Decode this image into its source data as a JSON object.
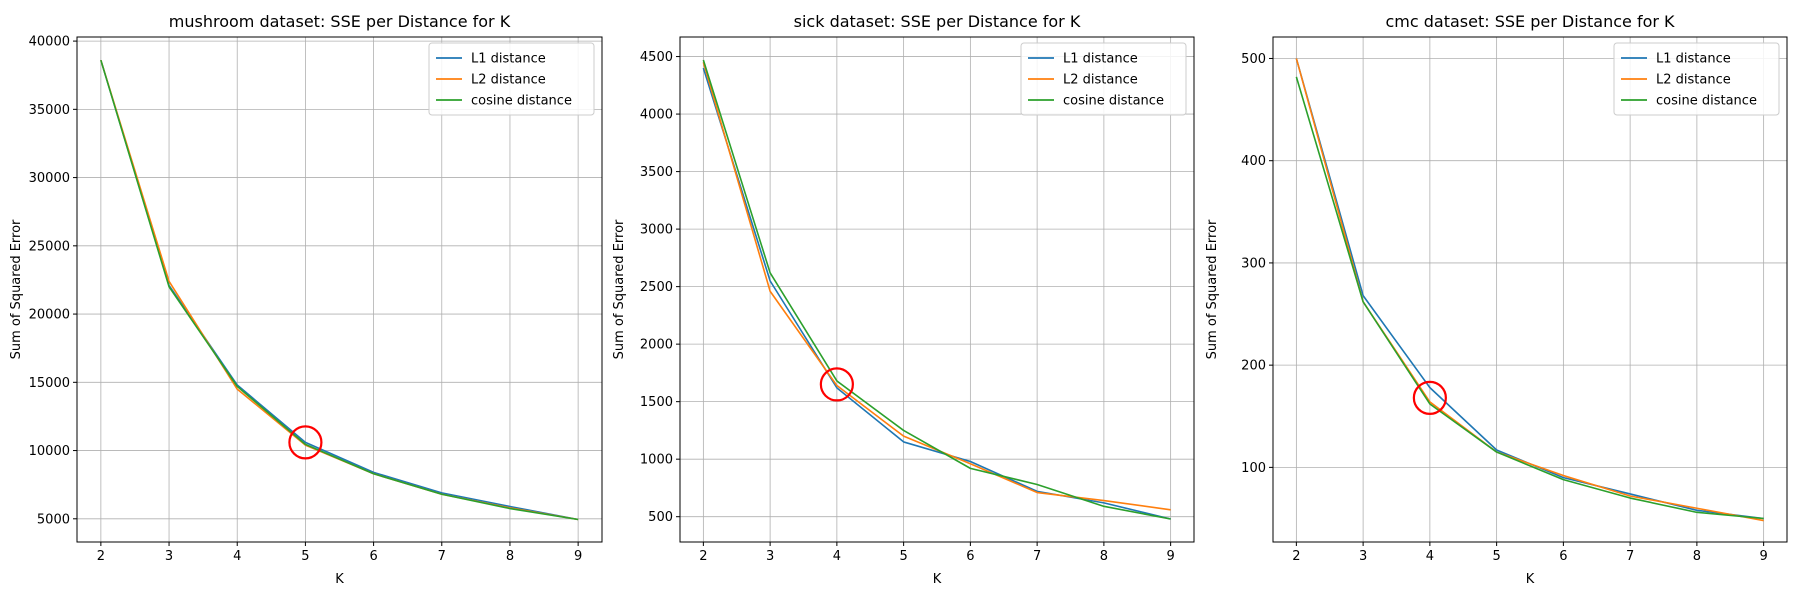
{
  "chart_data": [
    {
      "type": "line",
      "title": "mushroom dataset: SSE per Distance for K",
      "xlabel": "K",
      "ylabel": "Sum of Squared Error",
      "x": [
        2,
        3,
        4,
        5,
        6,
        7,
        8,
        9
      ],
      "xlim": [
        1.65,
        9.35
      ],
      "ylim": [
        3300,
        40300
      ],
      "xticks": [
        2,
        3,
        4,
        5,
        6,
        7,
        8,
        9
      ],
      "yticks": [
        5000,
        10000,
        15000,
        20000,
        25000,
        30000,
        35000,
        40000
      ],
      "grid": true,
      "legend": "upper right",
      "series": [
        {
          "name": "L1 distance",
          "color": "#1f77b4",
          "values": [
            38600,
            22100,
            14800,
            10600,
            8400,
            6900,
            5900,
            4950
          ]
        },
        {
          "name": "L2 distance",
          "color": "#ff7f0e",
          "values": [
            38600,
            22400,
            14500,
            10400,
            8300,
            6800,
            5800,
            4950
          ]
        },
        {
          "name": "cosine distance",
          "color": "#2ca02c",
          "values": [
            38600,
            22000,
            14700,
            10450,
            8300,
            6800,
            5750,
            4950
          ]
        }
      ],
      "marker": {
        "x": 5,
        "y": 10600,
        "color": "#ff0000"
      }
    },
    {
      "type": "line",
      "title": "sick dataset: SSE per Distance for K",
      "xlabel": "K",
      "ylabel": "Sum of Squared Error",
      "x": [
        2,
        3,
        4,
        5,
        6,
        7,
        8,
        9
      ],
      "xlim": [
        1.65,
        9.35
      ],
      "ylim": [
        280,
        4670
      ],
      "xticks": [
        2,
        3,
        4,
        5,
        6,
        7,
        8,
        9
      ],
      "yticks": [
        500,
        1000,
        1500,
        2000,
        2500,
        3000,
        3500,
        4000,
        4500
      ],
      "grid": true,
      "legend": "upper right",
      "series": [
        {
          "name": "L1 distance",
          "color": "#1f77b4",
          "values": [
            4400,
            2550,
            1620,
            1150,
            980,
            720,
            620,
            480
          ]
        },
        {
          "name": "L2 distance",
          "color": "#ff7f0e",
          "values": [
            4450,
            2460,
            1640,
            1200,
            960,
            710,
            640,
            560
          ]
        },
        {
          "name": "cosine distance",
          "color": "#2ca02c",
          "values": [
            4470,
            2620,
            1680,
            1250,
            920,
            780,
            590,
            480
          ]
        }
      ],
      "marker": {
        "x": 4,
        "y": 1650,
        "color": "#ff0000"
      }
    },
    {
      "type": "line",
      "title": "cmc dataset: SSE per Distance for K",
      "xlabel": "K",
      "ylabel": "Sum of Squared Error",
      "x": [
        2,
        3,
        4,
        5,
        6,
        7,
        8,
        9
      ],
      "xlim": [
        1.65,
        9.35
      ],
      "ylim": [
        27,
        521
      ],
      "xticks": [
        2,
        3,
        4,
        5,
        6,
        7,
        8,
        9
      ],
      "yticks": [
        100,
        200,
        300,
        400,
        500
      ],
      "grid": true,
      "legend": "upper right",
      "series": [
        {
          "name": "L1 distance",
          "color": "#1f77b4",
          "values": [
            500,
            268,
            178,
            117,
            90,
            74,
            58,
            50
          ]
        },
        {
          "name": "L2 distance",
          "color": "#ff7f0e",
          "values": [
            500,
            262,
            164,
            115,
            92,
            72,
            60,
            48
          ]
        },
        {
          "name": "cosine distance",
          "color": "#2ca02c",
          "values": [
            482,
            262,
            162,
            115,
            88,
            70,
            56,
            50
          ]
        }
      ],
      "marker": {
        "x": 4,
        "y": 168,
        "color": "#ff0000"
      }
    }
  ]
}
